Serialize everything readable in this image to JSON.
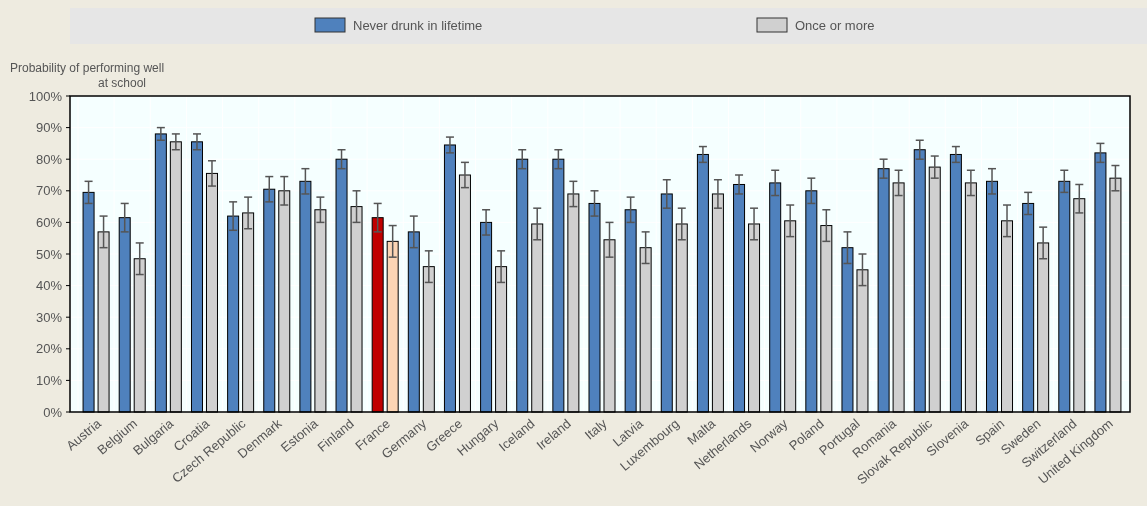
{
  "chart_data": {
    "type": "bar",
    "ylabel": "Probability of performing well at school",
    "categories": [
      "Austria",
      "Belgium",
      "Bulgaria",
      "Croatia",
      "Czech Republic",
      "Denmark",
      "Estonia",
      "Finland",
      "France",
      "Germany",
      "Greece",
      "Hungary",
      "Iceland",
      "Ireland",
      "Italy",
      "Latvia",
      "Luxembourg",
      "Malta",
      "Netherlands",
      "Norway",
      "Poland",
      "Portugal",
      "Romania",
      "Slovak Republic",
      "Slovenia",
      "Spain",
      "Sweden",
      "Switzerland",
      "United Kingdom"
    ],
    "series": [
      {
        "name": "Never drunk in lifetime",
        "color": "#4f81bd",
        "colors": [
          "#4f81bd",
          "#4f81bd",
          "#4f81bd",
          "#4f81bd",
          "#4f81bd",
          "#4f81bd",
          "#4f81bd",
          "#4f81bd",
          "#c00000",
          "#4f81bd",
          "#4f81bd",
          "#4f81bd",
          "#4f81bd",
          "#4f81bd",
          "#4f81bd",
          "#4f81bd",
          "#4f81bd",
          "#4f81bd",
          "#4f81bd",
          "#4f81bd",
          "#4f81bd",
          "#4f81bd",
          "#4f81bd",
          "#4f81bd",
          "#4f81bd",
          "#4f81bd",
          "#4f81bd",
          "#4f81bd",
          "#4f81bd"
        ],
        "values": [
          69.5,
          61.5,
          88,
          85.5,
          62,
          70.5,
          73,
          80,
          61.5,
          57,
          84.5,
          60,
          80,
          80,
          66,
          64,
          69,
          81.5,
          72,
          72.5,
          70,
          52,
          77,
          83,
          81.5,
          73,
          66,
          73,
          82
        ],
        "errors": [
          3.5,
          4.5,
          2,
          2.5,
          4.5,
          4,
          4,
          3,
          4.5,
          5,
          2.5,
          4,
          3,
          3,
          4,
          4,
          4.5,
          2.5,
          3,
          4,
          4,
          5,
          3,
          3,
          2.5,
          4,
          3.5,
          3.5,
          3
        ]
      },
      {
        "name": "Once or more",
        "color": "#d0d0d0",
        "colors": [
          "#d0d0d0",
          "#d0d0d0",
          "#d0d0d0",
          "#d0d0d0",
          "#d0d0d0",
          "#d0d0d0",
          "#d0d0d0",
          "#d0d0d0",
          "#fcd5b4",
          "#d0d0d0",
          "#d0d0d0",
          "#d0d0d0",
          "#d0d0d0",
          "#d0d0d0",
          "#d0d0d0",
          "#d0d0d0",
          "#d0d0d0",
          "#d0d0d0",
          "#d0d0d0",
          "#d0d0d0",
          "#d0d0d0",
          "#d0d0d0",
          "#d0d0d0",
          "#d0d0d0",
          "#d0d0d0",
          "#d0d0d0",
          "#d0d0d0",
          "#d0d0d0",
          "#d0d0d0"
        ],
        "values": [
          57,
          48.5,
          85.5,
          75.5,
          63,
          70,
          64,
          65,
          54,
          46,
          75,
          46,
          59.5,
          69,
          54.5,
          52,
          59.5,
          69,
          59.5,
          60.5,
          59,
          45,
          72.5,
          77.5,
          72.5,
          60.5,
          53.5,
          67.5,
          74
        ],
        "errors": [
          5,
          5,
          2.5,
          4,
          5,
          4.5,
          4,
          5,
          5,
          5,
          4,
          5,
          5,
          4,
          5.5,
          5,
          5,
          4.5,
          5,
          5,
          5,
          5,
          4,
          3.5,
          4,
          5,
          5,
          4.5,
          4
        ]
      }
    ],
    "ylim": [
      0,
      100
    ],
    "yticks": [
      {
        "value": 0,
        "label": "0%"
      },
      {
        "value": 10,
        "label": "10%"
      },
      {
        "value": 20,
        "label": "20%"
      },
      {
        "value": 30,
        "label": "30%"
      },
      {
        "value": 40,
        "label": "40%"
      },
      {
        "value": 50,
        "label": "50%"
      },
      {
        "value": 60,
        "label": "60%"
      },
      {
        "value": 70,
        "label": "70%"
      },
      {
        "value": 80,
        "label": "80%"
      },
      {
        "value": 90,
        "label": "90%"
      },
      {
        "value": 100,
        "label": "100%"
      }
    ],
    "grid": true,
    "legend": "top"
  }
}
